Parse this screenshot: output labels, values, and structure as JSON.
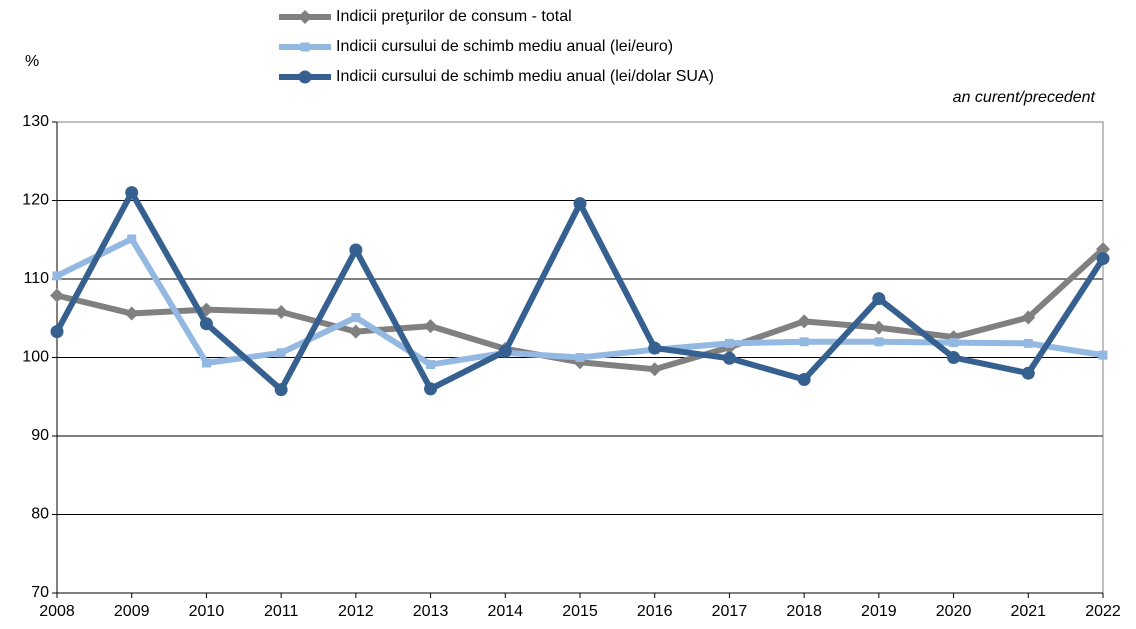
{
  "chart_data": {
    "type": "line",
    "y_label": "%",
    "annotation": "an curent/precedent",
    "categories": [
      "2008",
      "2009",
      "2010",
      "2011",
      "2012",
      "2013",
      "2014",
      "2015",
      "2016",
      "2017",
      "2018",
      "2019",
      "2020",
      "2021",
      "2022"
    ],
    "series": [
      {
        "name": "Indicii preţurilor de consum - total",
        "color": "#808080",
        "marker": "diamond",
        "values": [
          107.9,
          105.6,
          106.1,
          105.8,
          103.3,
          104.0,
          101.1,
          99.4,
          98.5,
          101.3,
          104.6,
          103.8,
          102.6,
          105.1,
          113.8
        ]
      },
      {
        "name": "Indicii cursului de schimb mediu anual (lei/euro)",
        "color": "#93b9e3",
        "marker": "square",
        "values": [
          110.4,
          115.1,
          99.3,
          100.6,
          105.1,
          99.1,
          100.6,
          100.0,
          101.0,
          101.8,
          102.0,
          102.0,
          101.9,
          101.8,
          100.3
        ]
      },
      {
        "name": "Indicii cursului de schimb mediu anual (lei/dolar SUA)",
        "color": "#35608f",
        "marker": "circle",
        "values": [
          103.3,
          121.0,
          104.3,
          95.9,
          113.7,
          96.0,
          100.8,
          119.6,
          101.2,
          99.9,
          97.2,
          107.5,
          100.0,
          98.0,
          112.6
        ]
      }
    ],
    "ylim": [
      70,
      130
    ],
    "yticks": [
      70,
      80,
      90,
      100,
      110,
      120,
      130
    ],
    "grid": true,
    "legend": "top"
  }
}
